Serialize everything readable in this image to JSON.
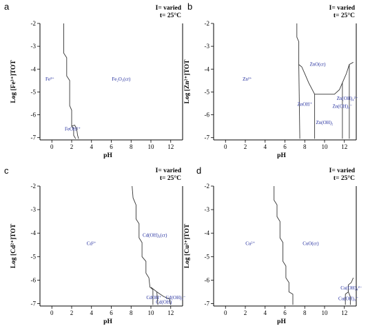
{
  "colors": {
    "region_label": "#1f2a9c",
    "boundary": "#333333",
    "axis": "#000000"
  },
  "chart_data": [
    {
      "type": "line",
      "panel": "a",
      "conditions": [
        "I= varied",
        "t= 25°C"
      ],
      "xlabel": "pH",
      "ylabel": "Log [Fe³⁺]TOT",
      "xlim": [
        -1.2,
        13.2
      ],
      "ylim": [
        -7.1,
        -2
      ],
      "xticks": [
        0,
        2,
        4,
        6,
        8,
        10,
        12
      ],
      "yticks": [
        -2,
        -3,
        -4,
        -5,
        -6,
        -7
      ],
      "regions": [
        {
          "label": "Fe³⁺",
          "x": -0.2,
          "y": -4.5
        },
        {
          "label": "Fe₂O₃(cr)",
          "x": 7.0,
          "y": -4.5
        },
        {
          "label": "FeOH²⁺",
          "x": 2.1,
          "y": -6.7
        }
      ],
      "boundaries": [
        [
          [
            1.2,
            -2
          ],
          [
            1.2,
            -3.3
          ],
          [
            1.5,
            -3.5
          ],
          [
            1.5,
            -4.3
          ],
          [
            1.8,
            -4.5
          ],
          [
            1.8,
            -5.6
          ],
          [
            2.0,
            -5.8
          ],
          [
            2.0,
            -6.5
          ],
          [
            2.2,
            -6.6
          ],
          [
            2.2,
            -6.9
          ],
          [
            2.4,
            -7.05
          ]
        ],
        [
          [
            2.0,
            -6.5
          ],
          [
            2.3,
            -6.45
          ],
          [
            2.5,
            -6.6
          ],
          [
            2.6,
            -6.9
          ],
          [
            2.7,
            -7.05
          ]
        ]
      ]
    },
    {
      "type": "line",
      "panel": "b",
      "conditions": [
        "I= varied",
        "t= 25°C"
      ],
      "xlabel": "pH",
      "ylabel": "Log [Zn²⁺]TOT",
      "xlim": [
        -1.2,
        13.2
      ],
      "ylim": [
        -7.1,
        -2
      ],
      "xticks": [
        0,
        2,
        4,
        6,
        8,
        10,
        12
      ],
      "yticks": [
        -2,
        -3,
        -4,
        -5,
        -6,
        -7
      ],
      "regions": [
        {
          "label": "Zn²⁺",
          "x": 2.2,
          "y": -4.5
        },
        {
          "label": "ZnO(cr)",
          "x": 9.3,
          "y": -3.85
        },
        {
          "label": "ZnOH⁺",
          "x": 8.0,
          "y": -5.6
        },
        {
          "label": "Zn(OH)₂",
          "x": 10.0,
          "y": -6.4
        },
        {
          "label": "Zn(OH)₄²⁻",
          "x": 12.3,
          "y": -5.35
        },
        {
          "label": "Zn(OH)₃⁻",
          "x": 11.8,
          "y": -5.7
        }
      ],
      "boundaries": [
        [
          [
            7.2,
            -2
          ],
          [
            7.2,
            -2.6
          ],
          [
            7.4,
            -2.8
          ],
          [
            7.4,
            -3.8
          ],
          [
            7.7,
            -3.9
          ],
          [
            8.0,
            -4.2
          ],
          [
            8.4,
            -4.6
          ],
          [
            9.0,
            -5.1
          ],
          [
            11.0,
            -5.1
          ],
          [
            11.5,
            -4.9
          ],
          [
            11.9,
            -4.5
          ],
          [
            12.2,
            -4.2
          ],
          [
            12.5,
            -3.8
          ],
          [
            12.9,
            -3.7
          ]
        ],
        [
          [
            7.4,
            -3.8
          ],
          [
            7.5,
            -7.05
          ]
        ],
        [
          [
            9.0,
            -5.1
          ],
          [
            9.0,
            -7.05
          ]
        ],
        [
          [
            11.8,
            -4.6
          ],
          [
            11.8,
            -7.05
          ]
        ],
        [
          [
            12.5,
            -3.8
          ],
          [
            12.5,
            -7.05
          ]
        ]
      ]
    },
    {
      "type": "line",
      "panel": "c",
      "conditions": [
        "I= varied",
        "t= 25°C"
      ],
      "xlabel": "pH",
      "ylabel": "Log [Cd²⁺]TOT",
      "xlim": [
        -1.2,
        13.2
      ],
      "ylim": [
        -7.1,
        -2
      ],
      "xticks": [
        0,
        2,
        4,
        6,
        8,
        10,
        12
      ],
      "yticks": [
        -2,
        -3,
        -4,
        -5,
        -6,
        -7
      ],
      "regions": [
        {
          "label": "Cd²⁺",
          "x": 4.0,
          "y": -4.5
        },
        {
          "label": "Cd(OH)₂(cr)",
          "x": 10.4,
          "y": -4.15
        },
        {
          "label": "CdOH⁺",
          "x": 10.3,
          "y": -6.8
        },
        {
          "label": "Cd(OH)₃⁻",
          "x": 12.5,
          "y": -6.8
        },
        {
          "label": "Cd(OH)",
          "x": 11.3,
          "y": -7.0
        }
      ],
      "boundaries": [
        [
          [
            8.1,
            -2
          ],
          [
            8.2,
            -2.5
          ],
          [
            8.5,
            -2.8
          ],
          [
            8.5,
            -3.4
          ],
          [
            8.8,
            -3.6
          ],
          [
            8.8,
            -4.2
          ],
          [
            9.1,
            -4.4
          ],
          [
            9.1,
            -5.0
          ],
          [
            9.5,
            -5.2
          ],
          [
            9.5,
            -5.7
          ],
          [
            9.8,
            -5.9
          ],
          [
            9.9,
            -6.3
          ],
          [
            10.2,
            -6.4
          ],
          [
            10.2,
            -7.05
          ]
        ],
        [
          [
            10.0,
            -6.3
          ],
          [
            10.6,
            -6.5
          ],
          [
            10.7,
            -7.05
          ]
        ],
        [
          [
            10.6,
            -6.5
          ],
          [
            11.3,
            -6.7
          ],
          [
            11.9,
            -6.8
          ],
          [
            12.0,
            -7.05
          ]
        ]
      ]
    },
    {
      "type": "line",
      "panel": "d",
      "conditions": [
        "I= varied",
        "t= 25°C"
      ],
      "xlabel": "pH",
      "ylabel": "Log [Cu²⁺]TOT",
      "xlim": [
        -1.2,
        13.2
      ],
      "ylim": [
        -7.1,
        -2
      ],
      "xticks": [
        0,
        2,
        4,
        6,
        8,
        10,
        12
      ],
      "yticks": [
        -2,
        -3,
        -4,
        -5,
        -6,
        -7
      ],
      "regions": [
        {
          "label": "Cu²⁺",
          "x": 2.5,
          "y": -4.5
        },
        {
          "label": "CuO(cr)",
          "x": 8.6,
          "y": -4.5
        },
        {
          "label": "Cu(OH)₄²⁻",
          "x": 12.7,
          "y": -6.4
        },
        {
          "label": "Cu(OH)₃⁻",
          "x": 12.4,
          "y": -6.85
        }
      ],
      "boundaries": [
        [
          [
            4.9,
            -2
          ],
          [
            4.9,
            -2.6
          ],
          [
            5.2,
            -2.8
          ],
          [
            5.2,
            -3.3
          ],
          [
            5.5,
            -3.5
          ],
          [
            5.5,
            -4.2
          ],
          [
            5.8,
            -4.4
          ],
          [
            5.8,
            -5.2
          ],
          [
            6.1,
            -5.4
          ],
          [
            6.1,
            -5.9
          ],
          [
            6.4,
            -6.1
          ],
          [
            6.4,
            -6.5
          ],
          [
            6.8,
            -6.6
          ],
          [
            6.8,
            -7.05
          ]
        ],
        [
          [
            12.1,
            -7.05
          ],
          [
            12.1,
            -6.6
          ],
          [
            12.4,
            -6.5
          ],
          [
            12.4,
            -6.2
          ],
          [
            12.7,
            -6.1
          ],
          [
            12.9,
            -5.9
          ]
        ],
        [
          [
            12.4,
            -6.5
          ],
          [
            12.6,
            -6.7
          ],
          [
            12.6,
            -7.05
          ]
        ]
      ]
    }
  ]
}
